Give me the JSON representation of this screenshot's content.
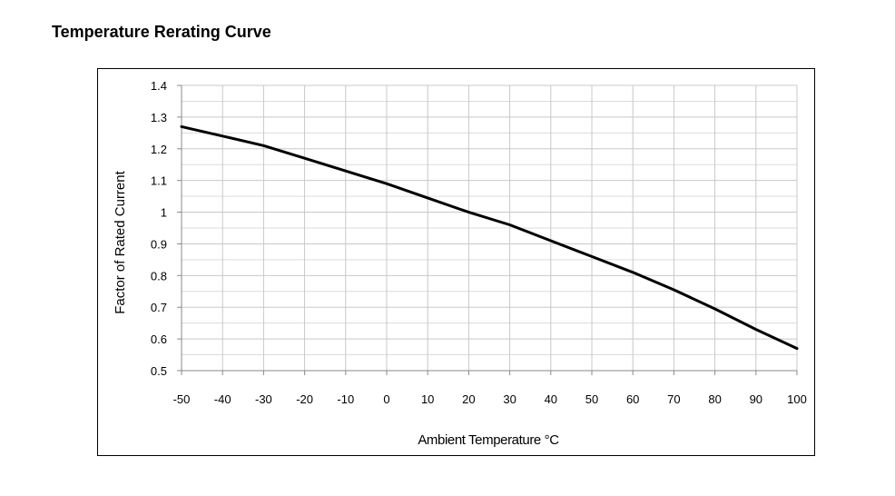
{
  "page_title": "Temperature Rerating Curve",
  "chart_data": {
    "type": "line",
    "title": "Temperature Rerating Curve",
    "xlabel": "Ambient Temperature °C",
    "ylabel": "Factor of Rated Current",
    "xlim": [
      -50,
      100
    ],
    "ylim": [
      0.5,
      1.4
    ],
    "grid": true,
    "x_ticks": [
      -50,
      -40,
      -30,
      -20,
      -10,
      0,
      10,
      20,
      30,
      40,
      50,
      60,
      70,
      80,
      90,
      100
    ],
    "x_tick_labels": [
      "-50",
      "-40",
      "-30",
      "-20",
      "-10",
      "0",
      "10",
      "20",
      "30",
      "40",
      "50",
      "60",
      "70",
      "80",
      "90",
      "100"
    ],
    "y_ticks": [
      0.5,
      0.6,
      0.7,
      0.8,
      0.9,
      1.0,
      1.1,
      1.2,
      1.3,
      1.4
    ],
    "y_tick_labels": [
      "0.5",
      "0.6",
      "0.7",
      "0.8",
      "0.9",
      "1",
      "1.1",
      "1.2",
      "1.3",
      "1.4"
    ],
    "series": [
      {
        "name": "Factor of Rated Current",
        "x": [
          -50,
          -40,
          -30,
          -20,
          -10,
          0,
          10,
          20,
          30,
          40,
          50,
          60,
          70,
          80,
          90,
          100
        ],
        "values": [
          1.27,
          1.24,
          1.21,
          1.17,
          1.13,
          1.09,
          1.045,
          1.0,
          0.96,
          0.91,
          0.86,
          0.81,
          0.755,
          0.695,
          0.63,
          0.57
        ]
      }
    ],
    "colors": {
      "line": "#000000",
      "grid": "#c8c8c8",
      "axis": "#888888",
      "text": "#000000"
    }
  }
}
